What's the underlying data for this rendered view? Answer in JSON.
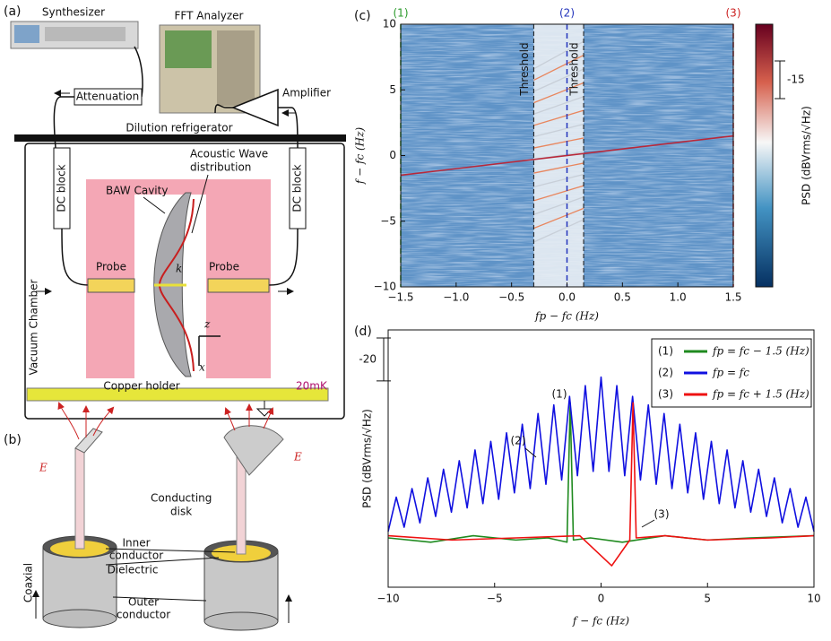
{
  "panels": [
    "(a)",
    "(b)",
    "(c)",
    "(d)"
  ],
  "diagram_a": {
    "synthesizer": "Synthesizer",
    "fft_analyzer": "FFT Analyzer",
    "attenuation": "Attenuation",
    "amplifier": "Amplifier",
    "refrigerator": "Dilution refrigerator",
    "dc_block": [
      "DC block",
      "DC block"
    ],
    "baw_cavity": "BAW Cavity",
    "acoustic_wave": [
      "Acoustic Wave",
      "distribution"
    ],
    "probe": [
      "Probe",
      "Probe"
    ],
    "vacuum_chamber": "Vacuum Chamber",
    "copper_holder": "Copper holder",
    "temperature": "20mK",
    "wave_vector": "k",
    "axis_z": "z",
    "axis_x": "x"
  },
  "diagram_b": {
    "field": [
      "E",
      "E"
    ],
    "conducting_disk": [
      "Conducting",
      "disk"
    ],
    "inner_conductor": [
      "Inner",
      "conductor"
    ],
    "dielectric": "Dielectric",
    "outer_conductor": [
      "Outer",
      "conductor"
    ],
    "coaxial": "Coaxial"
  },
  "chart_data": [
    {
      "type": "heatmap",
      "xlabel": "fp − fc (Hz)",
      "ylabel": "f − fc (Hz)",
      "colorbar_label": "PSD (dBVrms/√Hz)",
      "colorbar_scale": -15,
      "xlim": [
        -1.5,
        1.5
      ],
      "ylim": [
        -10,
        10
      ],
      "xticks": [
        {
          "value": -1.5,
          "label": "−1.5"
        },
        {
          "value": -1,
          "label": "−1.0"
        },
        {
          "value": -0.5,
          "label": "−0.5"
        },
        {
          "value": 0,
          "label": "0.0"
        },
        {
          "value": 0.5,
          "label": "0.5"
        },
        {
          "value": 1,
          "label": "1.0"
        },
        {
          "value": 1.5,
          "label": "1.5"
        }
      ],
      "yticks": [
        {
          "value": -10,
          "label": "−10"
        },
        {
          "value": -5,
          "label": "−5"
        },
        0,
        5,
        10
      ],
      "markers": [
        {
          "label": "(1)",
          "x": -1.5,
          "color": "#2a9a2a"
        },
        {
          "label": "(2)",
          "x": 0,
          "color": "#2233bb"
        },
        {
          "label": "(3)",
          "x": 1.5,
          "color": "#cc2222"
        }
      ],
      "thresholds": [
        {
          "label": "Threshold",
          "x": -0.3
        },
        {
          "label": "Threshold",
          "x": 0.15
        }
      ],
      "pump_line": {
        "x": [
          -1.5,
          1.5
        ],
        "y": [
          -1.5,
          1.5
        ],
        "color": "#b8283a"
      }
    },
    {
      "type": "line",
      "xlabel": "f − fc (Hz)",
      "ylabel": "PSD (dBVrms/√Hz)",
      "scale_bar": -20,
      "xlim": [
        -10,
        10
      ],
      "ylim": [
        -120,
        0
      ],
      "xticks": [
        {
          "value": -10,
          "label": "−10"
        },
        {
          "value": -5,
          "label": "−5"
        },
        0,
        5,
        10
      ],
      "legend": "upper right",
      "annotations": [
        "(1)",
        "(2)",
        "(3)"
      ],
      "series": [
        {
          "name": "(1)",
          "label": "fp = fc − 1.5 (Hz)",
          "color": "#1f8a1f",
          "x": [
            -10,
            -8,
            -6,
            -4,
            -2.5,
            -1.6,
            -1.45,
            -1.3,
            -0.5,
            1,
            3,
            5,
            7,
            10
          ],
          "values": [
            -97,
            -99,
            -96,
            -98,
            -97,
            -99,
            -34,
            -98,
            -97,
            -99,
            -96,
            -98,
            -97,
            -96
          ]
        },
        {
          "name": "(2)",
          "label": "fp = fc",
          "color": "#1010e0",
          "x": [
            -10,
            -9.62,
            -9.25,
            -8.88,
            -8.51,
            -8.14,
            -7.77,
            -7.4,
            -7.03,
            -6.66,
            -6.29,
            -5.92,
            -5.55,
            -5.18,
            -4.81,
            -4.44,
            -4.07,
            -3.7,
            -3.33,
            -2.96,
            -2.59,
            -2.22,
            -1.85,
            -1.48,
            -1.11,
            -0.74,
            -0.37,
            0,
            0.37,
            0.74,
            1.11,
            1.48,
            1.85,
            2.22,
            2.59,
            2.96,
            3.33,
            3.7,
            4.07,
            4.44,
            4.81,
            5.18,
            5.55,
            5.92,
            6.29,
            6.66,
            7.03,
            7.4,
            7.77,
            8.14,
            8.51,
            8.88,
            9.25,
            9.62,
            10
          ],
          "values": [
            -94,
            -78,
            -92,
            -74,
            -90,
            -69,
            -87,
            -65,
            -85,
            -61,
            -83,
            -56,
            -81,
            -52,
            -79,
            -48,
            -76,
            -44,
            -74,
            -39,
            -72,
            -35,
            -70,
            -31,
            -68,
            -26,
            -66,
            -22,
            -66,
            -26,
            -68,
            -31,
            -70,
            -35,
            -72,
            -39,
            -74,
            -44,
            -76,
            -48,
            -79,
            -52,
            -81,
            -56,
            -83,
            -61,
            -85,
            -65,
            -87,
            -69,
            -90,
            -74,
            -92,
            -78,
            -94
          ]
        },
        {
          "name": "(3)",
          "label": "fp = fc + 1.5 (Hz)",
          "color": "#ee1111",
          "x": [
            -10,
            -7,
            -4,
            -1,
            0.5,
            1.35,
            1.5,
            1.65,
            3,
            5,
            8,
            10
          ],
          "values": [
            -96,
            -98,
            -97,
            -96,
            -110,
            -98,
            -34,
            -97,
            -96,
            -98,
            -97,
            -96
          ]
        }
      ]
    }
  ]
}
